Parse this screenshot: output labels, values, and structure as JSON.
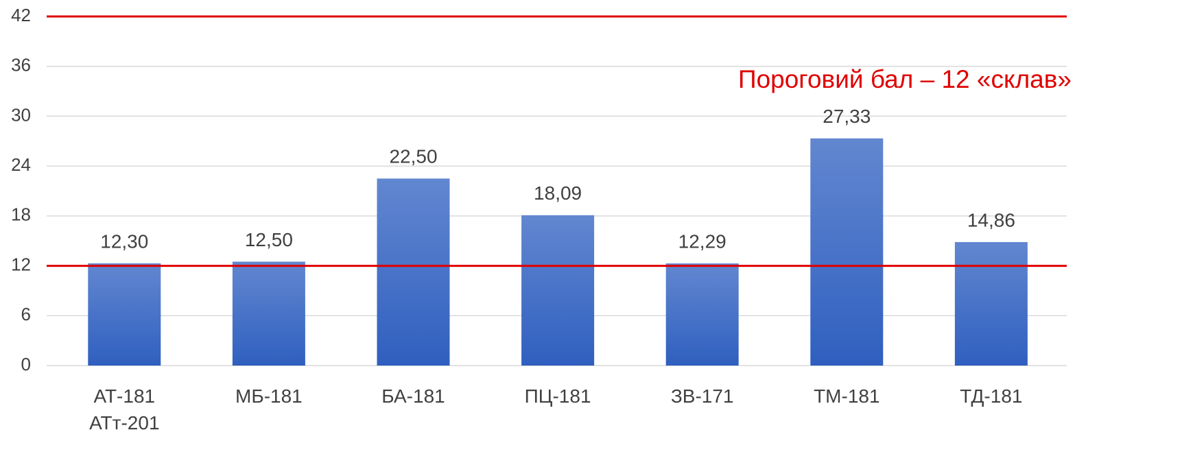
{
  "chart_data": {
    "type": "bar",
    "categories": [
      "АТ-181 АТт-201",
      "МБ-181",
      "БА-181",
      "ПЦ-181",
      "ЗВ-171",
      "ТМ-181",
      "ТД-181"
    ],
    "values": [
      12.3,
      12.5,
      22.5,
      18.09,
      12.29,
      27.33,
      14.86
    ],
    "value_labels": [
      "12,30",
      "12,50",
      "22,50",
      "18,09",
      "12,29",
      "27,33",
      "14,86"
    ],
    "color": "#4472c4",
    "ylim": [
      0,
      42
    ],
    "yticks": [
      0,
      6,
      12,
      18,
      24,
      30,
      36,
      42
    ],
    "grid": true,
    "threshold": 12,
    "threshold_color": "#e00000",
    "annotation": "Пороговий бал – 12 «склав»"
  }
}
